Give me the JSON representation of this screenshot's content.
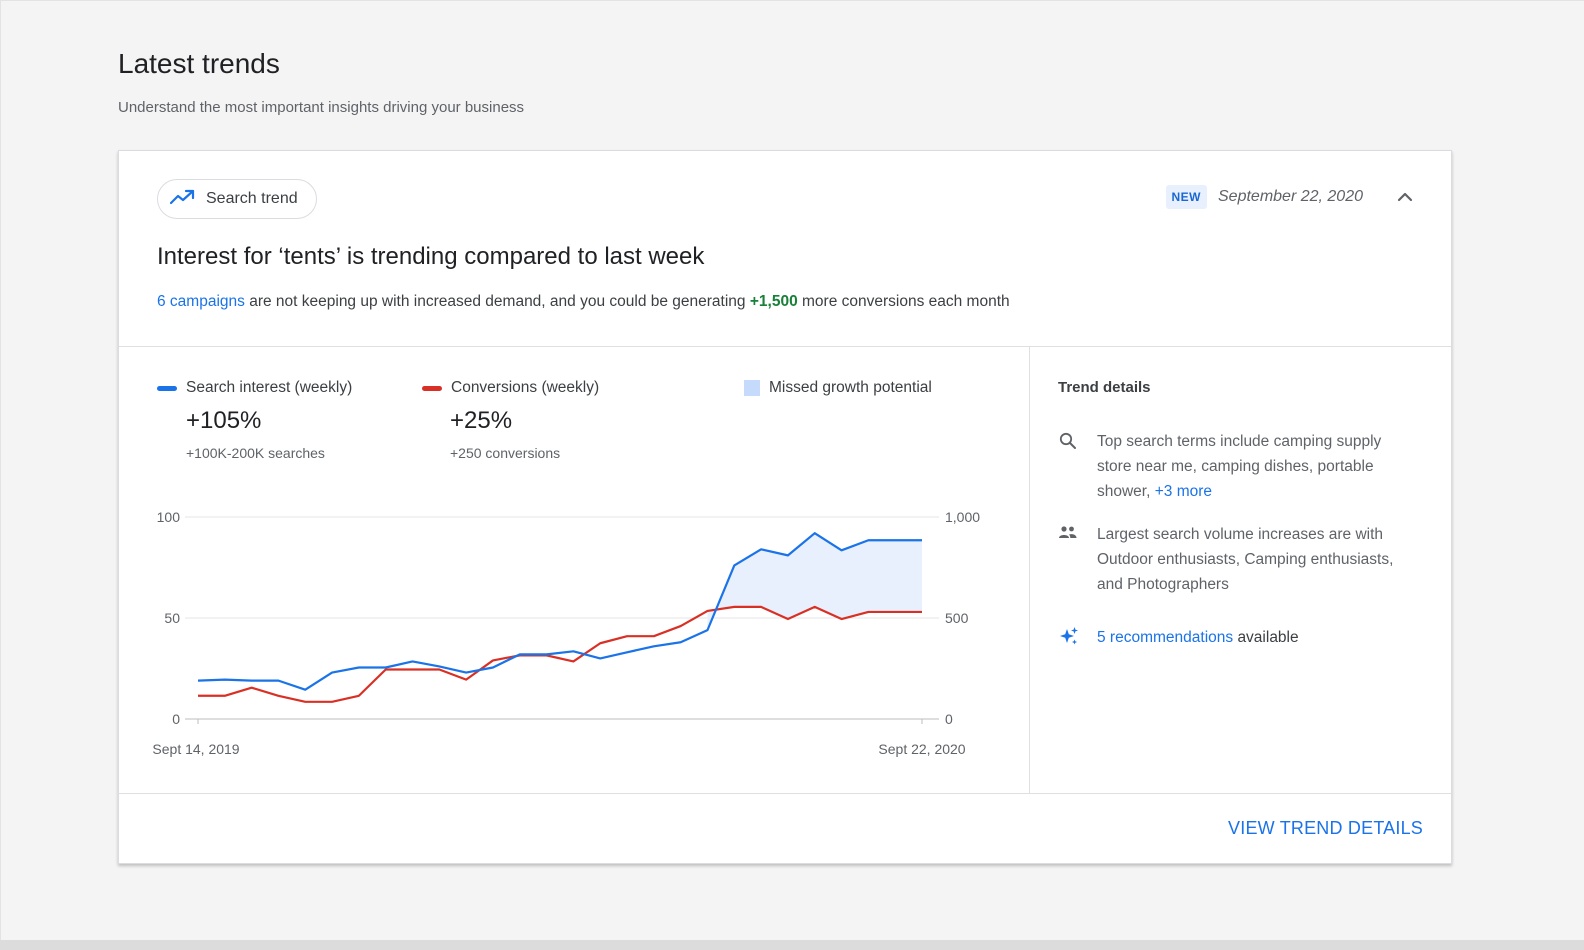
{
  "page": {
    "title": "Latest trends",
    "subtitle": "Understand the most important insights driving your business"
  },
  "card": {
    "chip_label": "Search trend",
    "chip_icon": "trending-up-icon",
    "badge": "NEW",
    "date": "September 22, 2020",
    "collapse_icon": "chevron-up-icon",
    "headline": "Interest for ‘tents’ is trending compared to last week",
    "description": {
      "link_text": "6 campaigns",
      "text_before_number": " are not keeping up with increased demand, and you could be generating ",
      "highlight": "+1,500",
      "text_after": " more conversions each month"
    },
    "legend": [
      {
        "label": "Search interest (weekly)",
        "value": "+105%",
        "sub": "+100K-200K searches",
        "color": "#1a73e8"
      },
      {
        "label": "Conversions (weekly)",
        "value": "+25%",
        "sub": "+250 conversions",
        "color": "#d93025"
      },
      {
        "label": "Missed growth potential",
        "color": "#c6dafc"
      }
    ],
    "details": {
      "title": "Trend details",
      "items": [
        {
          "icon": "search-icon",
          "text": "Top search terms include camping supply store near me, camping dishes, portable shower,",
          "link": "+3 more"
        },
        {
          "icon": "people-icon",
          "text": "Largest search volume increases are with Outdoor enthusiasts, Camping enthusiasts, and Photographers"
        },
        {
          "icon": "sparkle-icon",
          "link": "5 recommendations",
          "text": "available"
        }
      ]
    },
    "view_details": "VIEW TREND DETAILS"
  },
  "chart_data": {
    "type": "line",
    "x_start_label": "Sept 14, 2019",
    "x_end_label": "Sept 22, 2020",
    "y_left": {
      "ticks": [
        "100",
        "50",
        "0"
      ],
      "range": [
        0,
        100
      ]
    },
    "y_right": {
      "ticks": [
        "1,000",
        "500",
        "0"
      ],
      "range": [
        0,
        1000
      ]
    },
    "grid": true,
    "shaded_region": {
      "label": "Missed growth potential",
      "from_index": 19
    },
    "series": [
      {
        "name": "Search interest (weekly)",
        "axis": "left",
        "color": "#1a73e8",
        "values": [
          19,
          19.5,
          19,
          19,
          14.5,
          23,
          25.5,
          25.5,
          28.5,
          26,
          23,
          25.5,
          32,
          32,
          33.5,
          30,
          33,
          36,
          38,
          44,
          76,
          84,
          81,
          92,
          83.5,
          88.5,
          88.5,
          88.5
        ]
      },
      {
        "name": "Conversions (weekly)",
        "axis": "right",
        "color": "#d93025",
        "values": [
          115,
          115,
          155,
          115,
          85,
          85,
          115,
          245,
          245,
          245,
          195,
          290,
          315,
          315,
          285,
          375,
          410,
          410,
          460,
          535,
          555,
          555,
          495,
          555,
          495,
          530,
          530,
          530
        ]
      }
    ]
  }
}
